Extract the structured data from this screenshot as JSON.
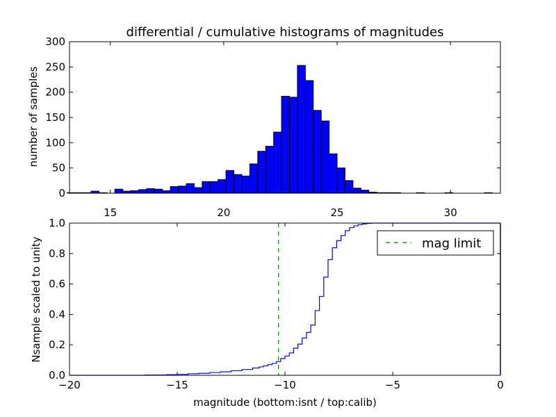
{
  "figure": {
    "title": "differential / cumulative histograms of magnitudes"
  },
  "chart_data": [
    {
      "type": "bar",
      "panel": "top",
      "title": "differential / cumulative histograms of magnitudes",
      "xlabel": "",
      "ylabel": "number of samples",
      "xlim": [
        13.2,
        32.2
      ],
      "ylim": [
        0,
        300
      ],
      "xticks": [
        15,
        20,
        25,
        30
      ],
      "yticks": [
        0,
        50,
        100,
        150,
        200,
        250,
        300
      ],
      "xtick_position": "bottom",
      "bar_color": "#0000ff",
      "bin_width": 0.35,
      "bins": [
        [
          13.1,
          1
        ],
        [
          13.45,
          1
        ],
        [
          13.8,
          1
        ],
        [
          14.15,
          4
        ],
        [
          14.5,
          1
        ],
        [
          14.85,
          0
        ],
        [
          15.2,
          8
        ],
        [
          15.55,
          4
        ],
        [
          15.9,
          5
        ],
        [
          16.25,
          7
        ],
        [
          16.6,
          9
        ],
        [
          16.95,
          8
        ],
        [
          17.3,
          5
        ],
        [
          17.65,
          13
        ],
        [
          18.0,
          14
        ],
        [
          18.35,
          19
        ],
        [
          18.7,
          11
        ],
        [
          19.05,
          23
        ],
        [
          19.4,
          23
        ],
        [
          19.75,
          27
        ],
        [
          20.1,
          45
        ],
        [
          20.45,
          37
        ],
        [
          20.8,
          34
        ],
        [
          21.15,
          58
        ],
        [
          21.5,
          83
        ],
        [
          21.85,
          93
        ],
        [
          22.2,
          121
        ],
        [
          22.55,
          192
        ],
        [
          22.9,
          190
        ],
        [
          23.25,
          253
        ],
        [
          23.6,
          223
        ],
        [
          23.95,
          164
        ],
        [
          24.3,
          143
        ],
        [
          24.65,
          78
        ],
        [
          25.0,
          50
        ],
        [
          25.35,
          25
        ],
        [
          25.7,
          10
        ],
        [
          26.05,
          6
        ],
        [
          26.4,
          2
        ],
        [
          26.75,
          1
        ],
        [
          27.1,
          1
        ],
        [
          27.45,
          1
        ],
        [
          28.5,
          1
        ],
        [
          29.75,
          1
        ],
        [
          31.5,
          1
        ]
      ]
    },
    {
      "type": "line",
      "panel": "bottom",
      "drawstyle": "steps",
      "xlabel": "magnitude (bottom:isnt / top:calib)",
      "ylabel": "Nsample scaled to unity",
      "xlim": [
        -20,
        0
      ],
      "ylim": [
        0,
        1
      ],
      "xticks": [
        -20,
        -15,
        -10,
        -5,
        0
      ],
      "yticks": [
        0.0,
        0.2,
        0.4,
        0.6,
        0.8,
        1.0
      ],
      "xtick_labels": [
        "−20",
        "−15",
        "−10",
        "−5",
        "0"
      ],
      "ytick_labels": [
        "0.0",
        "0.2",
        "0.4",
        "0.6",
        "0.8",
        "1.0"
      ],
      "series": [
        {
          "style": "step",
          "color": "#0000ff",
          "x": [
            -20,
            -16.5,
            -15.5,
            -15.0,
            -14.5,
            -14.0,
            -13.5,
            -13.0,
            -12.5,
            -12.0,
            -11.5,
            -11.2,
            -11.0,
            -10.8,
            -10.6,
            -10.4,
            -10.2,
            -10.0,
            -9.8,
            -9.6,
            -9.4,
            -9.2,
            -9.0,
            -8.8,
            -8.6,
            -8.4,
            -8.2,
            -8.0,
            -7.8,
            -7.6,
            -7.4,
            -7.2,
            -7.0,
            -6.8,
            -6.6,
            -6.4,
            -6.2,
            -6.0,
            -5.5,
            0
          ],
          "y": [
            0.0,
            0.002,
            0.004,
            0.006,
            0.01,
            0.013,
            0.018,
            0.023,
            0.03,
            0.038,
            0.048,
            0.055,
            0.062,
            0.07,
            0.078,
            0.09,
            0.11,
            0.127,
            0.147,
            0.178,
            0.205,
            0.245,
            0.282,
            0.33,
            0.425,
            0.518,
            0.645,
            0.76,
            0.838,
            0.884,
            0.918,
            0.95,
            0.97,
            0.982,
            0.99,
            0.995,
            0.998,
            1.0,
            1.0,
            1.0
          ]
        },
        {
          "name": "mag limit",
          "style": "dashed-vertical",
          "color": "#007f00",
          "x": -10.3
        }
      ],
      "legend": {
        "position": "top-right",
        "entries": [
          "mag limit"
        ]
      }
    }
  ]
}
